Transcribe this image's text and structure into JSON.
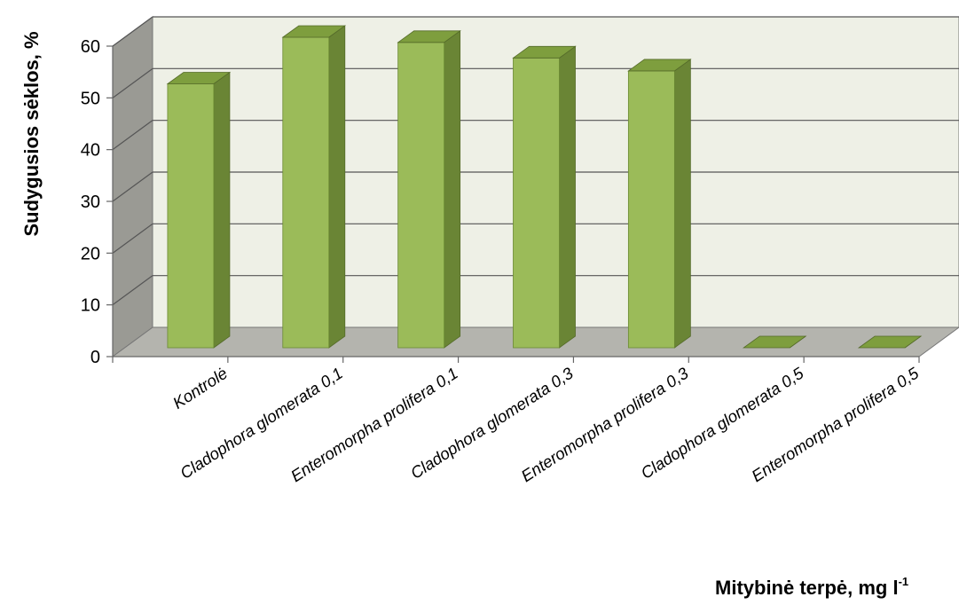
{
  "chart_data": {
    "type": "bar",
    "title": "",
    "xlabel": "Mitybinė terpė, mg l",
    "xlabel_superscript": "-1",
    "ylabel": "Sudygusios sėklos, %",
    "ylim": [
      0,
      60
    ],
    "yticks": [
      "0",
      "10",
      "20",
      "30",
      "40",
      "50",
      "60"
    ],
    "categories": [
      "Kontrolė",
      "Cladophora glomerata 0,1",
      "Enteromorpha prolifera 0,1",
      "Cladophora glomerata 0,3",
      "Enteromorpha prolifera 0,3",
      "Cladophora glomerata 0,5",
      "Enteromorpha prolifera 0,5"
    ],
    "values": [
      51,
      60,
      59,
      56,
      53.5,
      0,
      0
    ],
    "grid": true,
    "legend": "none",
    "colors": {
      "bar_front": "#9bbb59",
      "bar_side": "#6a8535",
      "bar_top": "#7e9e3e",
      "back_wall": "#eef0e6",
      "side_wall": "#9a9a94",
      "floor": "#b4b4ae",
      "gridline": "#555555"
    }
  }
}
